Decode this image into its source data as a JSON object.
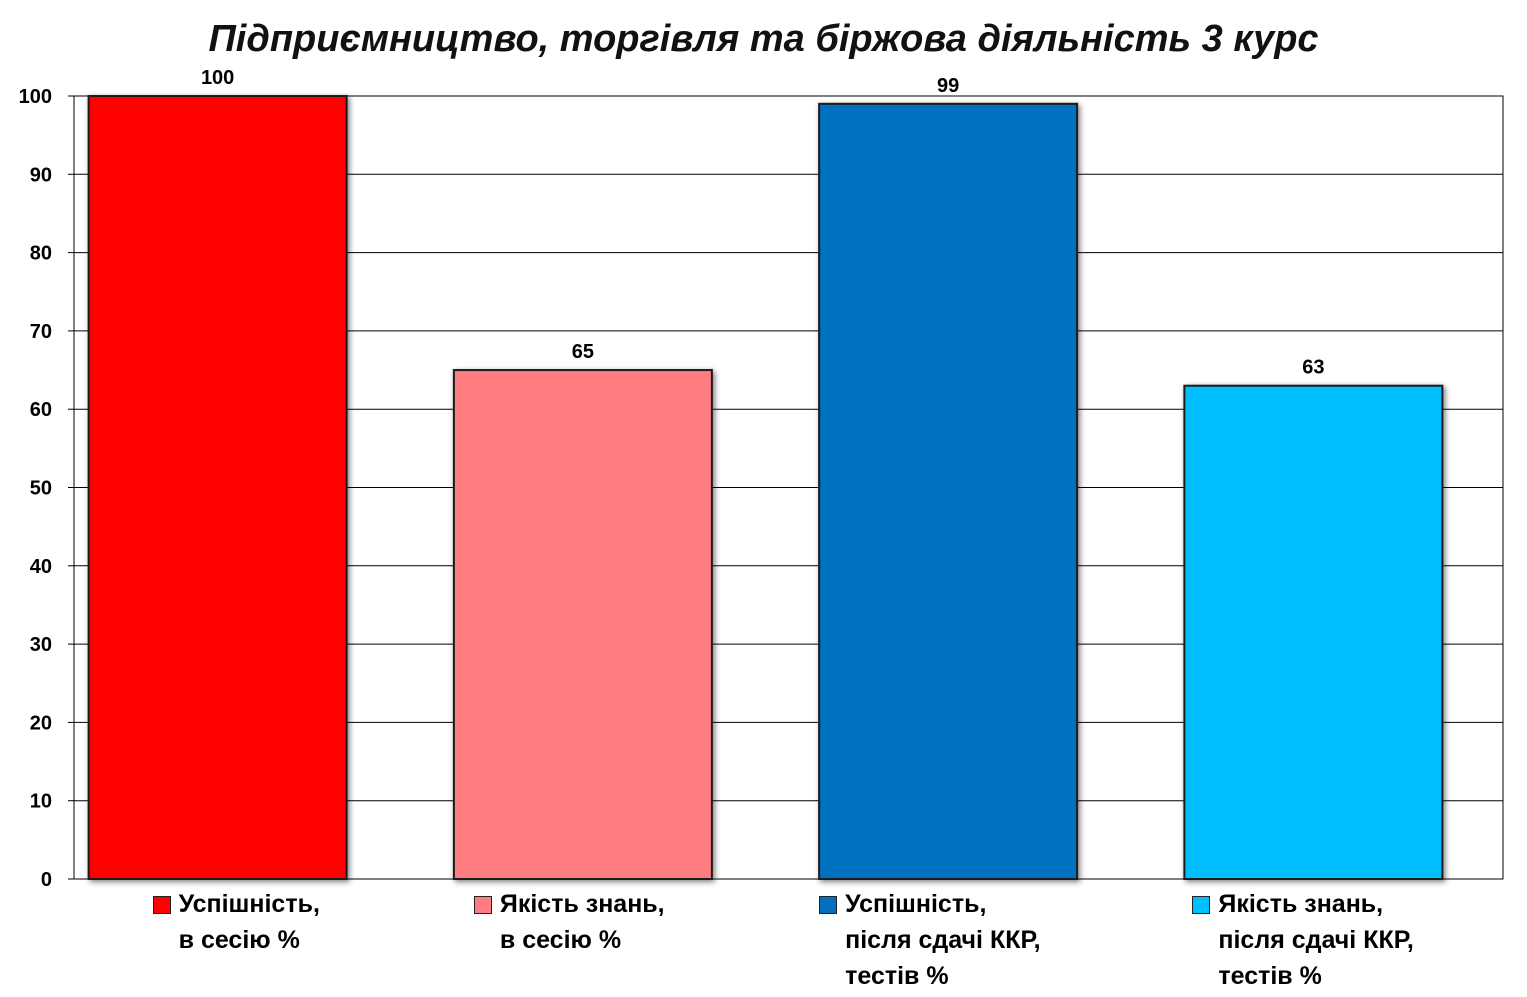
{
  "chart_data": {
    "type": "bar",
    "title": "Підприємництво, торгівля та біржова діяльність 3 курс",
    "ylim": [
      0,
      100
    ],
    "yticks": [
      "0",
      "10",
      "20",
      "30",
      "40",
      "50",
      "60",
      "70",
      "80",
      "90",
      "100"
    ],
    "grid": true,
    "legend_placement": "bottom",
    "series": [
      {
        "name": "Успішність,\nв сесію %",
        "value": 100,
        "label": "100",
        "color": "#ff0000"
      },
      {
        "name": "Якість знань,\nв сесію %",
        "value": 65,
        "label": "65",
        "color": "#ff7c80"
      },
      {
        "name": "Успішність,\nпісля сдачі ККР,\nтестів %",
        "value": 99,
        "label": "99",
        "color": "#0070c0"
      },
      {
        "name": "Якість знань,\nпісля сдачі ККР,\nтестів %",
        "value": 63,
        "label": "63",
        "color": "#00bfff"
      }
    ]
  }
}
